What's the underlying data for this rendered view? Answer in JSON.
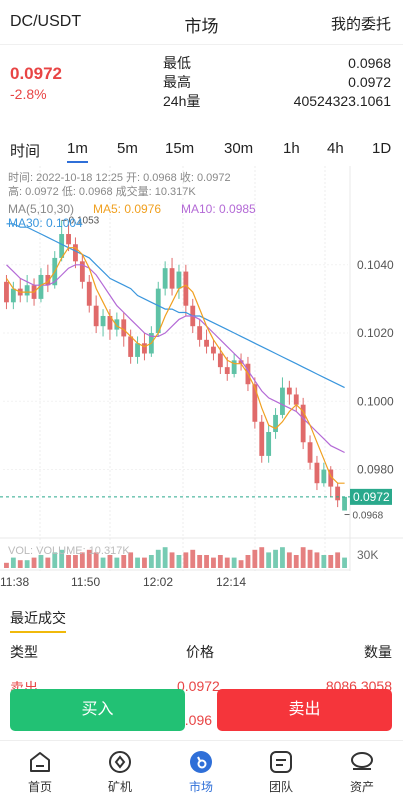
{
  "header": {
    "pair": "DC/USDT",
    "title": "市场",
    "orders": "我的委托"
  },
  "summary": {
    "price": "0.0972",
    "change": "-2.8%",
    "stats": [
      {
        "label": "最低",
        "value": "0.0968"
      },
      {
        "label": "最高",
        "value": "0.0972"
      },
      {
        "label": "24h量",
        "value": "40524323.1061"
      }
    ]
  },
  "timeframes": [
    "时间",
    "1m",
    "5m",
    "15m",
    "30m",
    "1h",
    "4h",
    "1D"
  ],
  "active_timeframe": "1m",
  "chart": {
    "info_line1": "时间: 2022-10-18 12:25    开: 0.0968    收: 0.0972",
    "info_line2": "高: 0.0972    低: 0.0968    成交量: 10.317K",
    "ma_label": "MA(5,10,30)",
    "ma5_label": "MA5: 0.0976",
    "ma10_label": "MA10: 0.0985",
    "ma30_label": "MA30: 0.1004",
    "max_label": "0.1053",
    "min_label": "0.0968",
    "price_tag": "0.0972",
    "vol_label": "VOL: VOLUME: 10.317K",
    "vol_axis": "30K",
    "colors": {
      "up": "#5fc2a6",
      "down": "#e06a6a",
      "ma5": "#f0a020",
      "ma10": "#b46ad6",
      "ma30": "#3a96dd",
      "tag": "#2aa98c"
    }
  },
  "chart_data": {
    "type": "candlestick",
    "y_ticks": [
      "0.1040",
      "0.1020",
      "0.1000",
      "0.0980"
    ],
    "x_ticks": [
      "11:38",
      "11:50",
      "12:02",
      "12:14"
    ],
    "ylim": [
      0.0962,
      0.1066
    ],
    "candles": [
      [
        0.1035,
        0.1029,
        0.1037,
        0.1027
      ],
      [
        0.1029,
        0.1033,
        0.1035,
        0.1027
      ],
      [
        0.1033,
        0.1031,
        0.1036,
        0.1029
      ],
      [
        0.1031,
        0.1034,
        0.1037,
        0.1029
      ],
      [
        0.1034,
        0.103,
        0.1036,
        0.1028
      ],
      [
        0.103,
        0.1037,
        0.1039,
        0.1029
      ],
      [
        0.1037,
        0.1034,
        0.104,
        0.1032
      ],
      [
        0.1034,
        0.1042,
        0.1044,
        0.1033
      ],
      [
        0.1042,
        0.1049,
        0.1053,
        0.1041
      ],
      [
        0.1049,
        0.1046,
        0.1052,
        0.1044
      ],
      [
        0.1046,
        0.1041,
        0.1048,
        0.1039
      ],
      [
        0.1041,
        0.1035,
        0.1043,
        0.1033
      ],
      [
        0.1035,
        0.1028,
        0.1037,
        0.1026
      ],
      [
        0.1028,
        0.1022,
        0.1031,
        0.102
      ],
      [
        0.1022,
        0.1025,
        0.1027,
        0.1019
      ],
      [
        0.1025,
        0.1021,
        0.1027,
        0.1018
      ],
      [
        0.1021,
        0.1024,
        0.1026,
        0.1019
      ],
      [
        0.1024,
        0.1019,
        0.1026,
        0.1016
      ],
      [
        0.1019,
        0.1013,
        0.1021,
        0.1011
      ],
      [
        0.1013,
        0.1017,
        0.1019,
        0.1011
      ],
      [
        0.1017,
        0.1014,
        0.102,
        0.1012
      ],
      [
        0.1014,
        0.102,
        0.1022,
        0.1013
      ],
      [
        0.102,
        0.1033,
        0.1035,
        0.1019
      ],
      [
        0.1033,
        0.1039,
        0.1041,
        0.1031
      ],
      [
        0.1039,
        0.1033,
        0.1042,
        0.1031
      ],
      [
        0.1033,
        0.1038,
        0.104,
        0.103
      ],
      [
        0.1038,
        0.1028,
        0.104,
        0.1025
      ],
      [
        0.1028,
        0.1022,
        0.103,
        0.102
      ],
      [
        0.1022,
        0.1018,
        0.1024,
        0.1016
      ],
      [
        0.1018,
        0.1016,
        0.1021,
        0.1014
      ],
      [
        0.1016,
        0.1014,
        0.1018,
        0.1012
      ],
      [
        0.1014,
        0.101,
        0.1016,
        0.1008
      ],
      [
        0.101,
        0.1008,
        0.1013,
        0.1006
      ],
      [
        0.1008,
        0.1012,
        0.1014,
        0.1007
      ],
      [
        0.1012,
        0.1011,
        0.1014,
        0.1009
      ],
      [
        0.1011,
        0.1005,
        0.1013,
        0.1003
      ],
      [
        0.1005,
        0.0994,
        0.1007,
        0.0992
      ],
      [
        0.0994,
        0.0984,
        0.0996,
        0.0982
      ],
      [
        0.0984,
        0.0991,
        0.0993,
        0.0982
      ],
      [
        0.0991,
        0.0996,
        0.0998,
        0.0989
      ],
      [
        0.0996,
        0.1004,
        0.1007,
        0.0995
      ],
      [
        0.1004,
        0.1002,
        0.1006,
        0.0999
      ],
      [
        0.1002,
        0.0999,
        0.1004,
        0.0997
      ],
      [
        0.0999,
        0.0988,
        0.1001,
        0.0986
      ],
      [
        0.0988,
        0.0982,
        0.099,
        0.098
      ],
      [
        0.0982,
        0.0976,
        0.0984,
        0.0974
      ],
      [
        0.0976,
        0.098,
        0.0982,
        0.0975
      ],
      [
        0.098,
        0.0975,
        0.0981,
        0.0972
      ],
      [
        0.0975,
        0.0971,
        0.0976,
        0.0969
      ],
      [
        0.0968,
        0.0972,
        0.0972,
        0.0968
      ]
    ],
    "volumes": [
      2,
      4,
      3,
      3,
      4,
      5,
      4,
      6,
      7,
      5,
      5,
      6,
      7,
      6,
      4,
      5,
      4,
      5,
      6,
      4,
      4,
      5,
      7,
      8,
      6,
      5,
      6,
      7,
      5,
      5,
      4,
      5,
      4,
      4,
      3,
      5,
      7,
      8,
      6,
      7,
      8,
      6,
      5,
      8,
      7,
      6,
      5,
      5,
      6,
      4
    ],
    "ma5": [
      0.1036,
      0.1033,
      0.1032,
      0.1032,
      0.1032,
      0.1034,
      0.1035,
      0.1038,
      0.1042,
      0.1045,
      0.1045,
      0.1043,
      0.1039,
      0.1033,
      0.1029,
      0.1025,
      0.1022,
      0.1021,
      0.1019,
      0.1017,
      0.1016,
      0.1017,
      0.102,
      0.1025,
      0.1029,
      0.1033,
      0.1034,
      0.1032,
      0.1027,
      0.1022,
      0.1018,
      0.1015,
      0.1012,
      0.1011,
      0.1011,
      0.1008,
      0.1004,
      0.0998,
      0.0993,
      0.0992,
      0.0994,
      0.0997,
      0.0999,
      0.0997,
      0.0993,
      0.0988,
      0.0983,
      0.0978,
      0.0976,
      0.0976
    ],
    "ma10": [
      0.104,
      0.1038,
      0.1036,
      0.1035,
      0.1034,
      0.1034,
      0.1034,
      0.1035,
      0.1037,
      0.1039,
      0.104,
      0.104,
      0.1039,
      0.1037,
      0.1034,
      0.1031,
      0.1028,
      0.1026,
      0.1024,
      0.1022,
      0.102,
      0.1019,
      0.1019,
      0.102,
      0.1022,
      0.1024,
      0.1025,
      0.1025,
      0.1024,
      0.1022,
      0.102,
      0.1018,
      0.1016,
      0.1014,
      0.1012,
      0.1009,
      0.1006,
      0.1003,
      0.1001,
      0.1,
      0.0999,
      0.0998,
      0.0997,
      0.0995,
      0.0993,
      0.0991,
      0.0989,
      0.0987,
      0.0986,
      0.0985
    ],
    "ma30": [
      0.1052,
      0.1052,
      0.1051,
      0.1051,
      0.105,
      0.1049,
      0.1048,
      0.1047,
      0.1046,
      0.1045,
      0.1044,
      0.1043,
      0.1042,
      0.104,
      0.1038,
      0.1036,
      0.1035,
      0.1034,
      0.1033,
      0.1031,
      0.103,
      0.1029,
      0.1028,
      0.1027,
      0.1027,
      0.1026,
      0.1026,
      0.1025,
      0.1025,
      0.1024,
      0.1023,
      0.1022,
      0.1021,
      0.102,
      0.1019,
      0.1018,
      0.1017,
      0.1016,
      0.1015,
      0.1014,
      0.1013,
      0.1012,
      0.1011,
      0.101,
      0.1009,
      0.1008,
      0.1007,
      0.1006,
      0.1005,
      0.1004
    ]
  },
  "recent": {
    "title": "最近成交",
    "headers": {
      "type": "类型",
      "price": "价格",
      "qty": "数量"
    },
    "rows": [
      {
        "type": "卖出",
        "price": "0.0972",
        "qty": "8086.3058"
      },
      {
        "type": "",
        "price": "0.096",
        "qty": ""
      }
    ]
  },
  "buttons": {
    "buy": "买入",
    "sell": "卖出"
  },
  "nav": [
    {
      "label": "首页",
      "icon": "home-icon"
    },
    {
      "label": "矿机",
      "icon": "miner-icon"
    },
    {
      "label": "市场",
      "icon": "market-icon"
    },
    {
      "label": "团队",
      "icon": "team-icon"
    },
    {
      "label": "资产",
      "icon": "assets-icon"
    }
  ],
  "nav_active": "市场"
}
